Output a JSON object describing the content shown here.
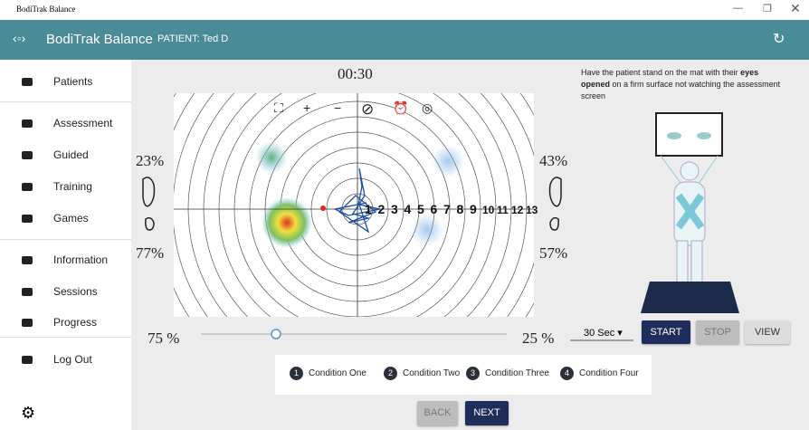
{
  "window": {
    "title": "BodiTrak Balance"
  },
  "header": {
    "app_name": "BodiTrak Balance",
    "patient": "PATIENT: Ted D"
  },
  "nav": {
    "items": [
      "Patients",
      "Assessment",
      "Guided",
      "Training",
      "Games",
      "Information",
      "Sessions",
      "Progress",
      "Log Out"
    ]
  },
  "assessment": {
    "timer": "00:30",
    "left_top": "23%",
    "left_bottom": "77%",
    "right_top": "43%",
    "right_bottom": "57%",
    "ring_labels": [
      1,
      2,
      3,
      4,
      5,
      6,
      7,
      8,
      9,
      10,
      11,
      12,
      13
    ],
    "slider_left": "75 %",
    "slider_right": "25 %"
  },
  "instructions": {
    "before": "Have the patient stand on the mat with their",
    "bold": "eyes opened",
    "after": "on a firm surface not watching the assessment screen"
  },
  "controls": {
    "duration": "30 Sec",
    "start": "START",
    "stop": "STOP",
    "view": "VIEW"
  },
  "conditions": [
    {
      "number": 1,
      "label": "Condition One"
    },
    {
      "number": 2,
      "label": "Condition Two"
    },
    {
      "number": 3,
      "label": "Condition Three"
    },
    {
      "number": 4,
      "label": "Condition Four"
    }
  ],
  "buttons": {
    "back": "BACK",
    "next": "NEXT"
  }
}
